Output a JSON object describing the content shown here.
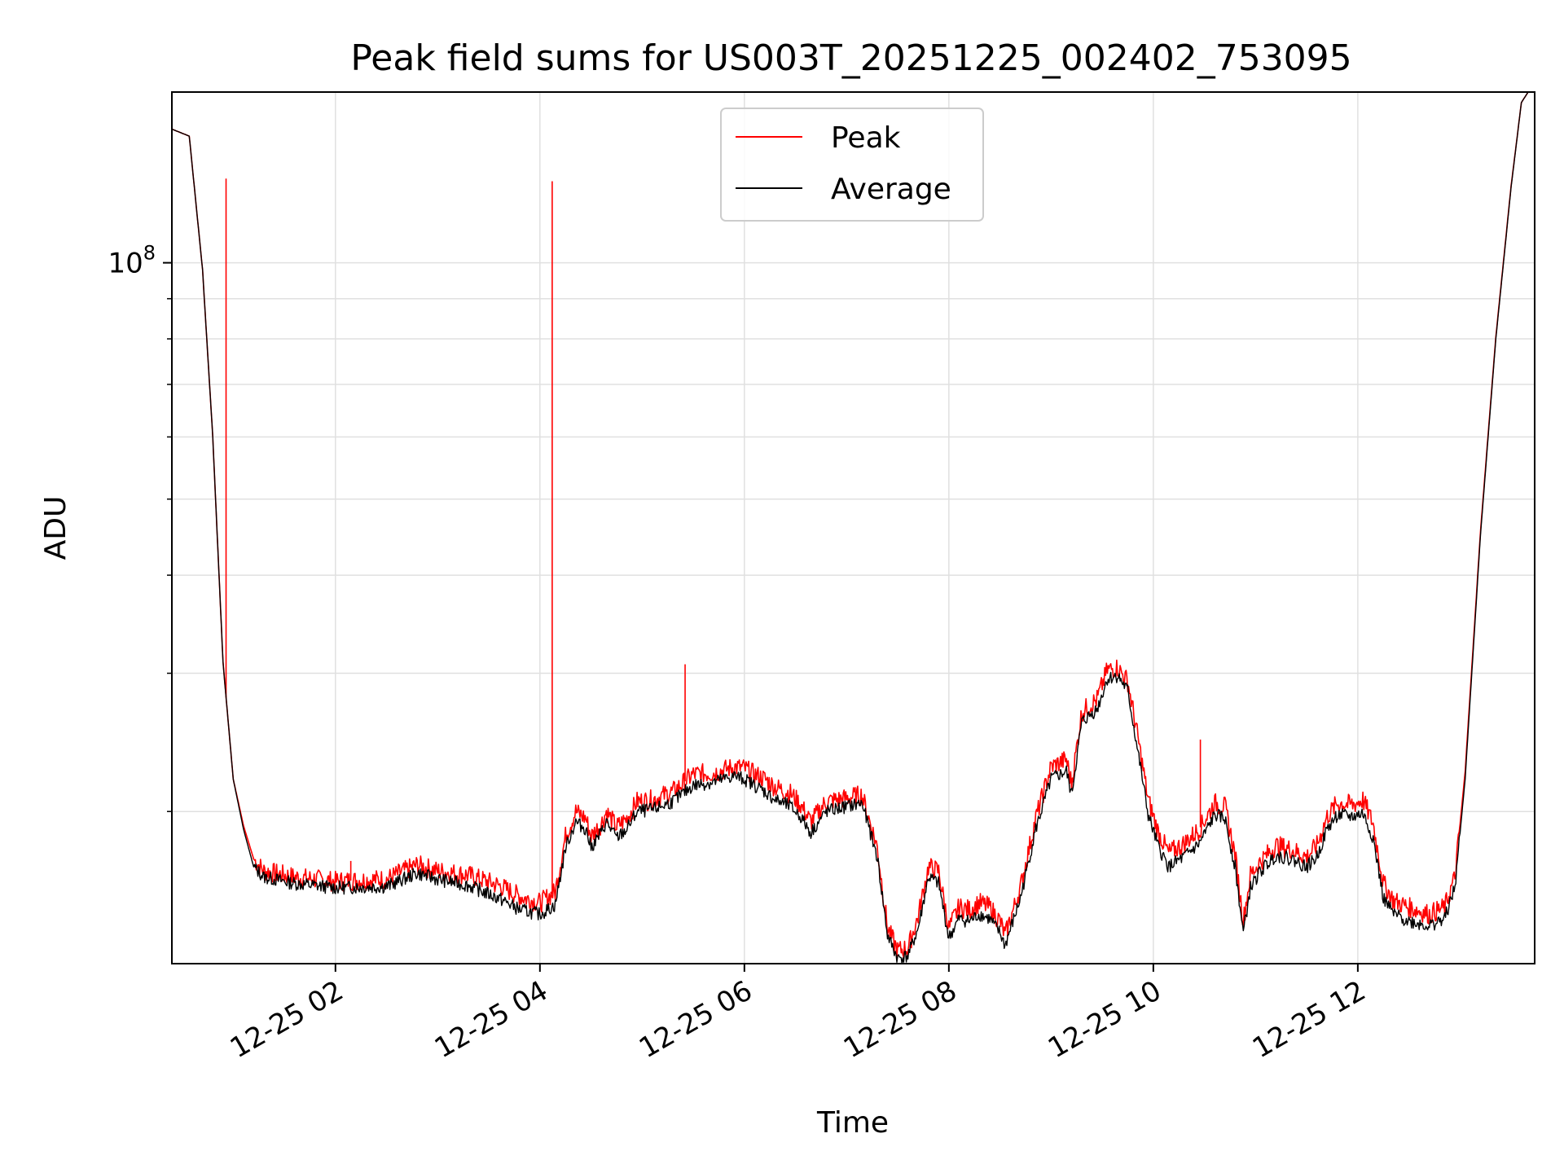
{
  "chart_data": {
    "type": "line",
    "title": "Peak field sums for US003T_20251225_002402_753095",
    "xlabel": "Time",
    "ylabel": "ADU",
    "yscale": "log",
    "grid": true,
    "legend_position": "top-center",
    "xlim": [
      0.4,
      13.73
    ],
    "ylim": [
      12800000,
      165000000
    ],
    "x_unit": "hours after 2025-12-25 00:00",
    "x_ticks": [
      2,
      4,
      6,
      8,
      10,
      12
    ],
    "x_tick_labels": [
      "12-25 02",
      "12-25 04",
      "12-25 06",
      "12-25 08",
      "12-25 10",
      "12-25 12"
    ],
    "y_ticks": [
      100000000
    ],
    "y_tick_label": {
      "base": "10",
      "exponent": "8"
    },
    "y_minor_ticks": [
      20000000,
      30000000,
      40000000,
      50000000,
      60000000,
      70000000,
      80000000,
      90000000
    ],
    "colors": {
      "peak": "#ff0000",
      "average": "#000000",
      "grid": "#e0e0e0"
    },
    "series": [
      {
        "name": "Average",
        "color": "#000000",
        "points": [
          [
            0.4,
            148000000
          ],
          [
            0.57,
            145000000
          ],
          [
            0.7,
            98000000
          ],
          [
            0.8,
            60000000
          ],
          [
            0.9,
            31000000
          ],
          [
            1.0,
            22000000
          ],
          [
            1.1,
            19000000
          ],
          [
            1.2,
            17000000
          ],
          [
            1.3,
            16500000
          ],
          [
            1.6,
            16200000
          ],
          [
            2.0,
            16000000
          ],
          [
            2.5,
            16050000
          ],
          [
            2.8,
            16700000
          ],
          [
            3.0,
            16400000
          ],
          [
            3.3,
            16100000
          ],
          [
            3.6,
            15500000
          ],
          [
            3.8,
            15000000
          ],
          [
            4.0,
            14800000
          ],
          [
            4.15,
            15200000
          ],
          [
            4.25,
            18000000
          ],
          [
            4.35,
            19400000
          ],
          [
            4.45,
            19000000
          ],
          [
            4.5,
            18000000
          ],
          [
            4.6,
            18800000
          ],
          [
            4.65,
            19400000
          ],
          [
            4.75,
            18500000
          ],
          [
            4.85,
            19000000
          ],
          [
            4.95,
            20000000
          ],
          [
            5.1,
            20100000
          ],
          [
            5.3,
            20600000
          ],
          [
            5.5,
            21600000
          ],
          [
            5.7,
            21800000
          ],
          [
            5.9,
            22200000
          ],
          [
            6.0,
            22000000
          ],
          [
            6.1,
            21600000
          ],
          [
            6.2,
            21200000
          ],
          [
            6.3,
            20700000
          ],
          [
            6.45,
            20300000
          ],
          [
            6.55,
            19700000
          ],
          [
            6.65,
            18800000
          ],
          [
            6.8,
            20000000
          ],
          [
            7.0,
            20300000
          ],
          [
            7.15,
            20500000
          ],
          [
            7.3,
            17500000
          ],
          [
            7.4,
            13900000
          ],
          [
            7.5,
            13000000
          ],
          [
            7.6,
            13100000
          ],
          [
            7.7,
            14200000
          ],
          [
            7.8,
            16500000
          ],
          [
            7.9,
            16200000
          ],
          [
            8.0,
            13800000
          ],
          [
            8.1,
            14600000
          ],
          [
            8.2,
            14500000
          ],
          [
            8.3,
            14800000
          ],
          [
            8.4,
            14600000
          ],
          [
            8.5,
            14000000
          ],
          [
            8.55,
            13500000
          ],
          [
            8.7,
            15500000
          ],
          [
            8.85,
            19000000
          ],
          [
            9.0,
            22000000
          ],
          [
            9.15,
            22500000
          ],
          [
            9.2,
            21000000
          ],
          [
            9.3,
            26000000
          ],
          [
            9.45,
            27000000
          ],
          [
            9.55,
            29500000
          ],
          [
            9.65,
            29800000
          ],
          [
            9.75,
            28500000
          ],
          [
            9.85,
            23800000
          ],
          [
            9.95,
            19800000
          ],
          [
            10.05,
            18000000
          ],
          [
            10.15,
            17000000
          ],
          [
            10.3,
            17500000
          ],
          [
            10.45,
            18200000
          ],
          [
            10.6,
            19800000
          ],
          [
            10.7,
            19600000
          ],
          [
            10.8,
            17000000
          ],
          [
            10.88,
            14000000
          ],
          [
            10.95,
            16000000
          ],
          [
            11.05,
            16800000
          ],
          [
            11.2,
            17600000
          ],
          [
            11.35,
            17400000
          ],
          [
            11.5,
            17000000
          ],
          [
            11.6,
            17500000
          ],
          [
            11.7,
            19000000
          ],
          [
            11.8,
            19800000
          ],
          [
            11.95,
            19700000
          ],
          [
            12.05,
            19900000
          ],
          [
            12.15,
            18500000
          ],
          [
            12.25,
            15500000
          ],
          [
            12.35,
            14800000
          ],
          [
            12.5,
            14500000
          ],
          [
            12.7,
            14300000
          ],
          [
            12.85,
            14600000
          ],
          [
            12.95,
            16000000
          ],
          [
            13.05,
            22000000
          ],
          [
            13.2,
            45000000
          ],
          [
            13.35,
            80000000
          ],
          [
            13.5,
            125000000
          ],
          [
            13.6,
            160000000
          ],
          [
            13.73,
            170000000
          ]
        ]
      },
      {
        "name": "Peak",
        "color": "#ff0000",
        "points": [
          [
            0.4,
            148000000
          ],
          [
            0.57,
            145000000
          ],
          [
            0.7,
            98000000
          ],
          [
            0.8,
            60000000
          ],
          [
            0.9,
            31000000
          ],
          [
            1.0,
            22000000
          ],
          [
            1.1,
            19200000
          ],
          [
            1.2,
            17400000
          ],
          [
            1.3,
            16800000
          ],
          [
            1.6,
            16500000
          ],
          [
            2.0,
            16300000
          ],
          [
            2.5,
            16400000
          ],
          [
            2.8,
            17100000
          ],
          [
            3.0,
            16800000
          ],
          [
            3.3,
            16600000
          ],
          [
            3.6,
            16100000
          ],
          [
            3.8,
            15600000
          ],
          [
            4.0,
            15300000
          ],
          [
            4.15,
            15800000
          ],
          [
            4.25,
            18600000
          ],
          [
            4.35,
            20000000
          ],
          [
            4.45,
            19600000
          ],
          [
            4.5,
            18600000
          ],
          [
            4.6,
            19300000
          ],
          [
            4.65,
            20000000
          ],
          [
            4.75,
            19100000
          ],
          [
            4.85,
            19600000
          ],
          [
            4.95,
            20600000
          ],
          [
            5.1,
            20700000
          ],
          [
            5.3,
            21200000
          ],
          [
            5.5,
            22300000
          ],
          [
            5.7,
            22400000
          ],
          [
            5.9,
            22800000
          ],
          [
            6.0,
            22700000
          ],
          [
            6.1,
            22300000
          ],
          [
            6.2,
            22000000
          ],
          [
            6.3,
            21500000
          ],
          [
            6.45,
            21100000
          ],
          [
            6.55,
            20400000
          ],
          [
            6.65,
            19400000
          ],
          [
            6.8,
            20600000
          ],
          [
            7.0,
            20800000
          ],
          [
            7.15,
            21000000
          ],
          [
            7.3,
            18000000
          ],
          [
            7.4,
            14200000
          ],
          [
            7.5,
            13300000
          ],
          [
            7.6,
            13400000
          ],
          [
            7.7,
            14700000
          ],
          [
            7.8,
            17000000
          ],
          [
            7.9,
            16800000
          ],
          [
            8.0,
            14200000
          ],
          [
            8.1,
            15100000
          ],
          [
            8.2,
            15000000
          ],
          [
            8.3,
            15300000
          ],
          [
            8.4,
            15100000
          ],
          [
            8.5,
            14500000
          ],
          [
            8.55,
            13900000
          ],
          [
            8.7,
            16000000
          ],
          [
            8.85,
            19600000
          ],
          [
            9.0,
            22800000
          ],
          [
            9.15,
            23300000
          ],
          [
            9.2,
            21700000
          ],
          [
            9.3,
            26800000
          ],
          [
            9.45,
            27800000
          ],
          [
            9.55,
            30300000
          ],
          [
            9.65,
            30500000
          ],
          [
            9.75,
            29300000
          ],
          [
            9.85,
            24800000
          ],
          [
            9.95,
            20700000
          ],
          [
            10.05,
            18800000
          ],
          [
            10.15,
            17700000
          ],
          [
            10.3,
            18200000
          ],
          [
            10.45,
            19000000
          ],
          [
            10.6,
            20500000
          ],
          [
            10.7,
            20300000
          ],
          [
            10.8,
            17600000
          ],
          [
            10.88,
            14500000
          ],
          [
            10.95,
            16600000
          ],
          [
            11.05,
            17300000
          ],
          [
            11.2,
            18100000
          ],
          [
            11.35,
            17900000
          ],
          [
            11.5,
            17500000
          ],
          [
            11.6,
            18100000
          ],
          [
            11.7,
            19700000
          ],
          [
            11.8,
            20500000
          ],
          [
            11.95,
            20400000
          ],
          [
            12.05,
            20700000
          ],
          [
            12.15,
            19300000
          ],
          [
            12.25,
            16200000
          ],
          [
            12.35,
            15400000
          ],
          [
            12.5,
            15100000
          ],
          [
            12.7,
            14800000
          ],
          [
            12.85,
            15100000
          ],
          [
            12.95,
            16500000
          ],
          [
            13.05,
            22500000
          ],
          [
            13.2,
            45500000
          ],
          [
            13.35,
            80500000
          ],
          [
            13.5,
            125500000
          ],
          [
            13.6,
            160000000
          ],
          [
            13.73,
            170000000
          ]
        ],
        "spikes": [
          [
            0.93,
            128000000
          ],
          [
            2.15,
            17300000
          ],
          [
            4.12,
            127000000
          ],
          [
            5.42,
            30800000
          ],
          [
            10.46,
            24700000
          ]
        ]
      }
    ],
    "legend": [
      {
        "label": "Peak",
        "color": "#ff0000"
      },
      {
        "label": "Average",
        "color": "#000000"
      }
    ]
  }
}
